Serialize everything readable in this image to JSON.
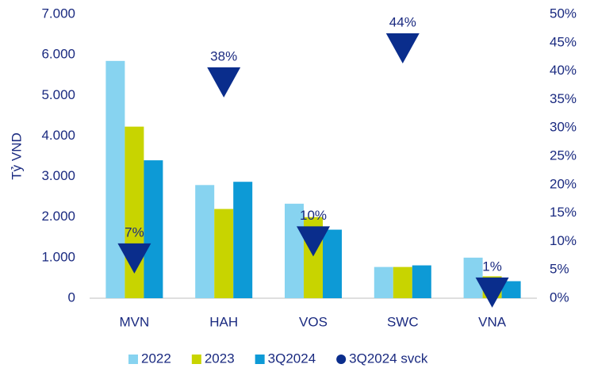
{
  "chart_data": {
    "type": "bar",
    "y_label": "Tỷ VND",
    "categories": [
      "MVN",
      "HAH",
      "VOS",
      "SWC",
      "VNA"
    ],
    "series": [
      {
        "name": "2022",
        "color": "#87d3f0",
        "values": [
          5850,
          2790,
          2330,
          770,
          1000
        ]
      },
      {
        "name": "2023",
        "color": "#c8d400",
        "values": [
          4230,
          2200,
          2000,
          770,
          540
        ]
      },
      {
        "name": "3Q2024",
        "color": "#0d9ad6",
        "values": [
          3400,
          2870,
          1690,
          810,
          420
        ]
      },
      {
        "name": "3Q2024 svck",
        "color": "#0a2d8c",
        "axis": "y2",
        "marker": "triangle-down",
        "values": [
          7,
          38,
          10,
          44,
          1
        ],
        "value_labels": [
          "7%",
          "38%",
          "10%",
          "44%",
          "1%"
        ]
      }
    ],
    "ylim": [
      0,
      7000
    ],
    "yticks": [
      0,
      {
        "value": 1000,
        "label": "1.000"
      },
      {
        "value": 2000,
        "label": "2.000"
      },
      {
        "value": 3000,
        "label": "3.000"
      },
      {
        "value": 4000,
        "label": "4.000"
      },
      {
        "value": 5000,
        "label": "5.000"
      },
      {
        "value": 6000,
        "label": "6.000"
      },
      {
        "value": 7000,
        "label": "7.000"
      }
    ],
    "y2lim": [
      0,
      50
    ],
    "y2ticks": [
      {
        "value": 0,
        "label": "0%"
      },
      {
        "value": 5,
        "label": "5%"
      },
      {
        "value": 10,
        "label": "10%"
      },
      {
        "value": 15,
        "label": "15%"
      },
      {
        "value": 20,
        "label": "20%"
      },
      {
        "value": 25,
        "label": "25%"
      },
      {
        "value": 30,
        "label": "30%"
      },
      {
        "value": 35,
        "label": "35%"
      },
      {
        "value": 40,
        "label": "40%"
      },
      {
        "value": 45,
        "label": "45%"
      },
      {
        "value": 50,
        "label": "50%"
      }
    ],
    "grid": false,
    "legend": "bottom"
  }
}
